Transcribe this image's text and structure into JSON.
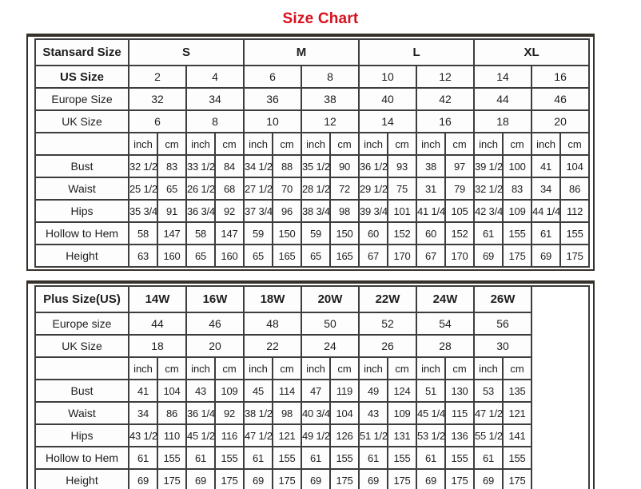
{
  "page": {
    "title": "Size Chart",
    "colors": {
      "title": "#d8101c",
      "border": "#3d3d3d",
      "text": "#1e1e1e",
      "cell_background": "#fdfdfd"
    }
  },
  "standard_table": {
    "header": {
      "corner": "Stansard Size",
      "groups": [
        "S",
        "M",
        "L",
        "XL"
      ]
    },
    "size_rows": [
      {
        "label": "US Size",
        "bold": true,
        "values": [
          "2",
          "4",
          "6",
          "8",
          "10",
          "12",
          "14",
          "16"
        ]
      },
      {
        "label": "Europe Size",
        "bold": false,
        "values": [
          "32",
          "34",
          "36",
          "38",
          "40",
          "42",
          "44",
          "46"
        ]
      },
      {
        "label": "UK Size",
        "bold": false,
        "values": [
          "6",
          "8",
          "10",
          "12",
          "14",
          "16",
          "18",
          "20"
        ]
      }
    ],
    "unit_row": {
      "units": [
        "inch",
        "cm"
      ],
      "pairs": 8
    },
    "measurement_rows": [
      {
        "label": "Bust",
        "values": [
          "32 1/2",
          "83",
          "33 1/2",
          "84",
          "34 1/2",
          "88",
          "35 1/2",
          "90",
          "36 1/2",
          "93",
          "38",
          "97",
          "39 1/2",
          "100",
          "41",
          "104"
        ]
      },
      {
        "label": "Waist",
        "values": [
          "25 1/2",
          "65",
          "26 1/2",
          "68",
          "27 1/2",
          "70",
          "28 1/2",
          "72",
          "29 1/2",
          "75",
          "31",
          "79",
          "32 1/2",
          "83",
          "34",
          "86"
        ]
      },
      {
        "label": "Hips",
        "values": [
          "35 3/4",
          "91",
          "36 3/4",
          "92",
          "37 3/4",
          "96",
          "38 3/4",
          "98",
          "39 3/4",
          "101",
          "41 1/4",
          "105",
          "42 3/4",
          "109",
          "44 1/4",
          "112"
        ]
      },
      {
        "label": "Hollow to Hem",
        "values": [
          "58",
          "147",
          "58",
          "147",
          "59",
          "150",
          "59",
          "150",
          "60",
          "152",
          "60",
          "152",
          "61",
          "155",
          "61",
          "155"
        ]
      },
      {
        "label": "Height",
        "values": [
          "63",
          "160",
          "65",
          "160",
          "65",
          "165",
          "65",
          "165",
          "67",
          "170",
          "67",
          "170",
          "69",
          "175",
          "69",
          "175"
        ]
      }
    ]
  },
  "plus_table": {
    "header": {
      "corner": "Plus Size(US)",
      "groups": [
        "14W",
        "16W",
        "18W",
        "20W",
        "22W",
        "24W",
        "26W"
      ]
    },
    "size_rows": [
      {
        "label": "Europe size",
        "bold": false,
        "values": [
          "44",
          "46",
          "48",
          "50",
          "52",
          "54",
          "56"
        ]
      },
      {
        "label": "UK Size",
        "bold": false,
        "values": [
          "18",
          "20",
          "22",
          "24",
          "26",
          "28",
          "30"
        ]
      }
    ],
    "unit_row": {
      "units": [
        "inch",
        "cm"
      ],
      "pairs": 7
    },
    "measurement_rows": [
      {
        "label": "Bust",
        "values": [
          "41",
          "104",
          "43",
          "109",
          "45",
          "114",
          "47",
          "119",
          "49",
          "124",
          "51",
          "130",
          "53",
          "135"
        ]
      },
      {
        "label": "Waist",
        "values": [
          "34",
          "86",
          "36 1/4",
          "92",
          "38 1/2",
          "98",
          "40 3/4",
          "104",
          "43",
          "109",
          "45 1/4",
          "115",
          "47 1/2",
          "121"
        ]
      },
      {
        "label": "Hips",
        "values": [
          "43 1/2",
          "110",
          "45 1/2",
          "116",
          "47 1/2",
          "121",
          "49 1/2",
          "126",
          "51 1/2",
          "131",
          "53 1/2",
          "136",
          "55 1/2",
          "141"
        ]
      },
      {
        "label": "Hollow to Hem",
        "values": [
          "61",
          "155",
          "61",
          "155",
          "61",
          "155",
          "61",
          "155",
          "61",
          "155",
          "61",
          "155",
          "61",
          "155"
        ]
      },
      {
        "label": "Height",
        "values": [
          "69",
          "175",
          "69",
          "175",
          "69",
          "175",
          "69",
          "175",
          "69",
          "175",
          "69",
          "175",
          "69",
          "175"
        ]
      }
    ],
    "has_trailing_empty_column": true
  }
}
